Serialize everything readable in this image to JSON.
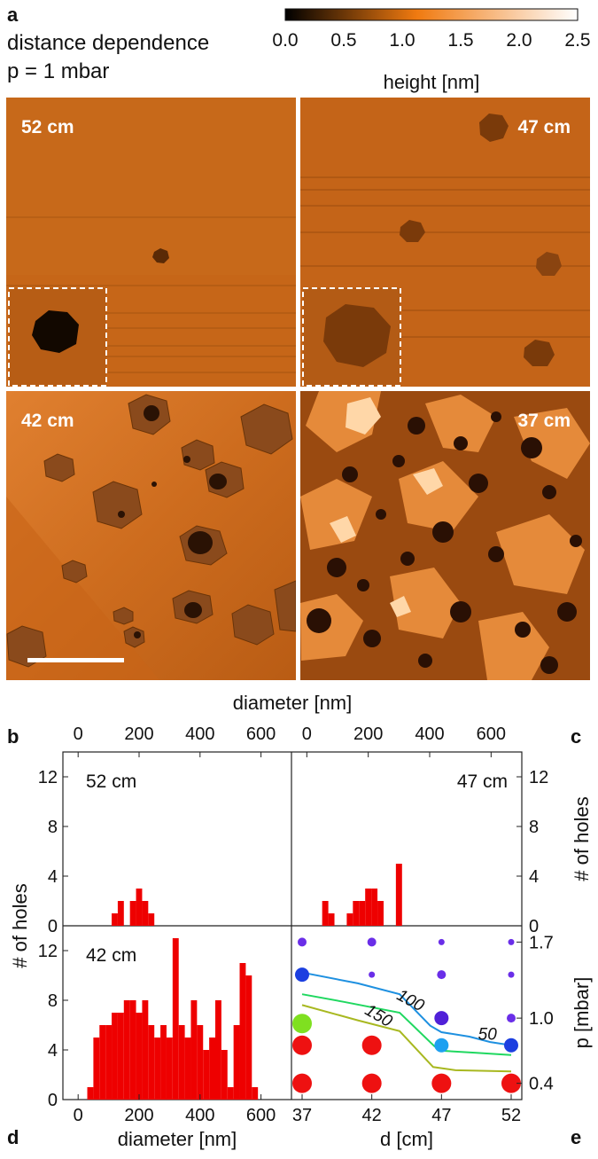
{
  "figure": {
    "panel_letters": {
      "a": "a",
      "b": "b",
      "c": "c",
      "d": "d",
      "e": "e"
    },
    "header": {
      "line1": "distance dependence",
      "line2": "p = 1 mbar"
    },
    "colorbar": {
      "ticks": [
        "0.0",
        "0.5",
        "1.0",
        "1.5",
        "2.0",
        "2.5"
      ],
      "label": "height [nm]",
      "colors": [
        "#000000",
        "#f07a10",
        "#ffffff"
      ]
    },
    "afm_images": [
      {
        "label": "52 cm"
      },
      {
        "label": "47 cm"
      },
      {
        "label": "42 cm"
      },
      {
        "label": "37 cm"
      }
    ],
    "colors": {
      "bar": "#ee0000",
      "background": "#c4641a"
    }
  },
  "chart_data": [
    {
      "type": "bar",
      "panel": "b",
      "label": "52 cm",
      "xlabel": "diameter [nm]",
      "xlabel_position": "top",
      "ylabel": "# of holes",
      "xlim": [
        -50,
        700
      ],
      "ylim": [
        0,
        14
      ],
      "xticks": [
        "0",
        "200",
        "400",
        "600"
      ],
      "yticks": [
        "0",
        "4",
        "8",
        "12"
      ],
      "bin_width": 20,
      "x": [
        120,
        140,
        180,
        200,
        220,
        240
      ],
      "values": [
        1,
        2,
        2,
        3,
        2,
        1
      ]
    },
    {
      "type": "bar",
      "panel": "c",
      "label": "47 cm",
      "xlabel": "diameter [nm]",
      "xlabel_position": "top",
      "ylabel": "# of holes",
      "xlim": [
        -50,
        700
      ],
      "ylim": [
        0,
        14
      ],
      "xticks": [
        "0",
        "200",
        "400",
        "600"
      ],
      "yticks": [
        "0",
        "4",
        "8",
        "12"
      ],
      "bin_width": 20,
      "x": [
        60,
        80,
        140,
        160,
        180,
        200,
        220,
        240,
        300
      ],
      "values": [
        2,
        1,
        1,
        2,
        2,
        3,
        3,
        2,
        5
      ]
    },
    {
      "type": "bar",
      "panel": "d",
      "label": "42 cm",
      "xlabel": "diameter [nm]",
      "ylabel": "# of holes",
      "xlim": [
        -50,
        700
      ],
      "ylim": [
        0,
        14
      ],
      "xticks": [
        "0",
        "200",
        "400",
        "600"
      ],
      "yticks": [
        "0",
        "4",
        "8",
        "12"
      ],
      "bin_width": 20,
      "x": [
        40,
        60,
        80,
        100,
        120,
        140,
        160,
        180,
        200,
        220,
        240,
        260,
        280,
        300,
        320,
        340,
        360,
        380,
        400,
        420,
        440,
        460,
        480,
        500,
        520,
        540,
        560,
        580
      ],
      "values": [
        1,
        5,
        6,
        6,
        7,
        7,
        8,
        8,
        7,
        8,
        6,
        5,
        6,
        5,
        13,
        6,
        5,
        8,
        6,
        4,
        5,
        8,
        4,
        1,
        6,
        11,
        10,
        1
      ]
    },
    {
      "type": "scatter",
      "panel": "e",
      "xlabel": "d [cm]",
      "ylabel": "p [mbar]",
      "xlim": [
        36,
        53.5
      ],
      "ylim": [
        0.25,
        1.85
      ],
      "xticks": [
        "37",
        "42",
        "47",
        "52"
      ],
      "yticks": [
        "0.4",
        "1.0",
        "1.7"
      ],
      "points": [
        {
          "x": 37,
          "y": 1.7,
          "size": "small",
          "color": "#6a2ee8"
        },
        {
          "x": 42,
          "y": 1.7,
          "size": "small",
          "color": "#6a2ee8"
        },
        {
          "x": 47,
          "y": 1.7,
          "size": "tiny",
          "color": "#6a2ee8"
        },
        {
          "x": 52,
          "y": 1.7,
          "size": "tiny",
          "color": "#6a2ee8"
        },
        {
          "x": 37,
          "y": 1.4,
          "size": "medium",
          "color": "#1c3fe0"
        },
        {
          "x": 42,
          "y": 1.4,
          "size": "tiny",
          "color": "#6a2ee8"
        },
        {
          "x": 47,
          "y": 1.4,
          "size": "small",
          "color": "#6a2ee8"
        },
        {
          "x": 52,
          "y": 1.4,
          "size": "tiny",
          "color": "#6a2ee8"
        },
        {
          "x": 47,
          "y": 1.0,
          "size": "medium",
          "color": "#5020d8"
        },
        {
          "x": 52,
          "y": 1.0,
          "size": "small",
          "color": "#6a2ee8"
        },
        {
          "x": 37,
          "y": 0.95,
          "size": "large",
          "color": "#7fe020"
        },
        {
          "x": 37,
          "y": 0.75,
          "size": "large",
          "color": "#ee1111"
        },
        {
          "x": 42,
          "y": 0.75,
          "size": "large",
          "color": "#ee1111"
        },
        {
          "x": 47,
          "y": 0.75,
          "size": "medium",
          "color": "#1ea0f0"
        },
        {
          "x": 52,
          "y": 0.75,
          "size": "medium",
          "color": "#1c3fe0"
        },
        {
          "x": 37,
          "y": 0.4,
          "size": "large",
          "color": "#ee1111"
        },
        {
          "x": 42,
          "y": 0.4,
          "size": "large",
          "color": "#ee1111"
        },
        {
          "x": 47,
          "y": 0.4,
          "size": "large",
          "color": "#ee1111"
        },
        {
          "x": 52,
          "y": 0.4,
          "size": "large",
          "color": "#ee1111"
        }
      ],
      "contours": [
        {
          "name": "50",
          "color": "#1e90e0",
          "points": [
            [
              37,
              1.42
            ],
            [
              41,
              1.32
            ],
            [
              44,
              1.22
            ],
            [
              46.2,
              0.93
            ],
            [
              47,
              0.87
            ],
            [
              49,
              0.83
            ],
            [
              50.5,
              0.78
            ],
            [
              52,
              0.75
            ]
          ]
        },
        {
          "name": "100",
          "color": "#20d860",
          "points": [
            [
              37,
              1.22
            ],
            [
              40,
              1.15
            ],
            [
              44,
              1.05
            ],
            [
              46.5,
              0.74
            ],
            [
              47,
              0.7
            ],
            [
              49.5,
              0.68
            ],
            [
              52,
              0.66
            ]
          ]
        },
        {
          "name": "150",
          "color": "#a8b820",
          "points": [
            [
              37,
              1.12
            ],
            [
              41,
              0.98
            ],
            [
              44,
              0.88
            ],
            [
              46.4,
              0.55
            ],
            [
              48,
              0.52
            ],
            [
              52,
              0.51
            ]
          ]
        }
      ]
    }
  ]
}
